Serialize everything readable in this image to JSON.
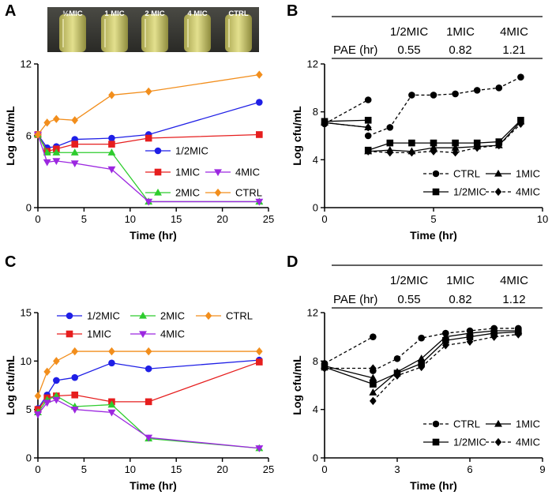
{
  "chart_data": [
    {
      "panel": "A",
      "type": "line",
      "photo_labels": [
        "½MIC",
        "1 MIC",
        "2 MIC",
        "4 MIC",
        "CTRL"
      ],
      "xlabel": "Time (hr)",
      "ylabel": "Log cfu/mL",
      "xlim": [
        0,
        25
      ],
      "ylim": [
        0,
        12
      ],
      "xticks": [
        0,
        5,
        10,
        15,
        20,
        25
      ],
      "yticks": [
        0,
        6,
        12
      ],
      "legend": [
        "1/2MIC",
        "1MIC",
        "4MIC",
        "2MIC",
        "CTRL"
      ],
      "series": [
        {
          "name": "1/2MIC",
          "color": "#1f1fe6",
          "marker": "circle",
          "x": [
            0,
            1,
            2,
            4,
            8,
            12,
            24
          ],
          "y": [
            6.1,
            5.0,
            5.1,
            5.7,
            5.8,
            6.1,
            8.8
          ]
        },
        {
          "name": "1MIC",
          "color": "#e61e1e",
          "marker": "square",
          "x": [
            0,
            1,
            2,
            4,
            8,
            12,
            24
          ],
          "y": [
            6.1,
            4.7,
            4.9,
            5.3,
            5.3,
            5.8,
            6.1
          ]
        },
        {
          "name": "2MIC",
          "color": "#2ecc2e",
          "marker": "triangle-up",
          "x": [
            0,
            1,
            2,
            4,
            8,
            12,
            24
          ],
          "y": [
            6.1,
            4.6,
            4.6,
            4.6,
            4.6,
            0.5,
            0.5
          ]
        },
        {
          "name": "4MIC",
          "color": "#9c27e0",
          "marker": "triangle-down",
          "x": [
            0,
            1,
            2,
            4,
            8,
            12,
            24
          ],
          "y": [
            6.1,
            3.8,
            3.9,
            3.7,
            3.2,
            0.5,
            0.5
          ]
        },
        {
          "name": "CTRL",
          "color": "#f28e1c",
          "marker": "diamond",
          "x": [
            0,
            1,
            2,
            4,
            8,
            12,
            24
          ],
          "y": [
            6.1,
            7.1,
            7.4,
            7.3,
            9.4,
            9.7,
            11.1
          ]
        }
      ]
    },
    {
      "panel": "B",
      "type": "line",
      "pae_table": {
        "headers": [
          "1/2MIC",
          "1MIC",
          "4MIC"
        ],
        "row_label": "PAE (hr)",
        "values": [
          "0.55",
          "0.82",
          "1.21"
        ]
      },
      "xlabel": "Time (hr)",
      "ylabel": "Log cfu/mL",
      "xlim": [
        0,
        10
      ],
      "ylim": [
        0,
        12
      ],
      "xticks": [
        0,
        5,
        10
      ],
      "yticks": [
        0,
        4,
        8,
        12
      ],
      "legend": [
        "CTRL",
        "1MIC",
        "1/2MIC",
        "4MIC"
      ],
      "series": [
        {
          "name": "CTRL",
          "color": "#000000",
          "marker": "circle",
          "dash": "4,3",
          "segments": [
            {
              "x": [
                0,
                2
              ],
              "y": [
                7.0,
                9.0
              ]
            },
            {
              "x": [
                2,
                3,
                4,
                5,
                6,
                7,
                8,
                9
              ],
              "y": [
                6.0,
                6.7,
                9.4,
                9.4,
                9.5,
                9.8,
                10.0,
                10.9
              ]
            }
          ]
        },
        {
          "name": "1MIC",
          "color": "#000000",
          "marker": "triangle-up",
          "dash": "",
          "segments": [
            {
              "x": [
                0,
                2
              ],
              "y": [
                7.1,
                6.7
              ]
            },
            {
              "x": [
                2,
                3,
                4,
                5,
                6,
                7,
                8,
                9
              ],
              "y": [
                4.7,
                4.8,
                4.7,
                5.0,
                5.0,
                5.1,
                5.2,
                7.2
              ]
            }
          ]
        },
        {
          "name": "1/2MIC",
          "color": "#000000",
          "marker": "square",
          "dash": "",
          "segments": [
            {
              "x": [
                0,
                2
              ],
              "y": [
                7.2,
                7.3
              ]
            },
            {
              "x": [
                2,
                3,
                4,
                5,
                6,
                7,
                8,
                9
              ],
              "y": [
                4.8,
                5.4,
                5.4,
                5.4,
                5.4,
                5.4,
                5.5,
                7.3
              ]
            }
          ]
        },
        {
          "name": "4MIC",
          "color": "#000000",
          "marker": "diamond",
          "dash": "4,3",
          "segments": [
            {
              "x": [
                0,
                2
              ],
              "y": [
                7.1,
                6.7
              ]
            },
            {
              "x": [
                2,
                3,
                4,
                5,
                6,
                7,
                8,
                9
              ],
              "y": [
                4.7,
                4.6,
                4.6,
                4.7,
                4.6,
                5.0,
                5.2,
                7.0
              ]
            }
          ]
        }
      ]
    },
    {
      "panel": "C",
      "type": "line",
      "xlabel": "Time (hr)",
      "ylabel": "Log cfu/mL",
      "xlim": [
        0,
        25
      ],
      "ylim": [
        0,
        15
      ],
      "xticks": [
        0,
        5,
        10,
        15,
        20,
        25
      ],
      "yticks": [
        0,
        5,
        10,
        15
      ],
      "legend": [
        "1/2MIC",
        "2MIC",
        "CTRL",
        "1MIC",
        "4MIC"
      ],
      "series": [
        {
          "name": "1/2MIC",
          "color": "#1f1fe6",
          "marker": "circle",
          "x": [
            0,
            1,
            2,
            4,
            8,
            12,
            24
          ],
          "y": [
            5.1,
            6.5,
            8.0,
            8.3,
            9.8,
            9.2,
            10.1
          ]
        },
        {
          "name": "1MIC",
          "color": "#e61e1e",
          "marker": "square",
          "x": [
            0,
            1,
            2,
            4,
            8,
            12,
            24
          ],
          "y": [
            5.0,
            6.2,
            6.4,
            6.5,
            5.8,
            5.8,
            9.9
          ]
        },
        {
          "name": "2MIC",
          "color": "#2ecc2e",
          "marker": "triangle-up",
          "x": [
            0,
            1,
            2,
            4,
            8,
            12,
            24
          ],
          "y": [
            4.7,
            6.0,
            6.4,
            5.3,
            5.5,
            2.0,
            1.0
          ]
        },
        {
          "name": "4MIC",
          "color": "#9c27e0",
          "marker": "triangle-down",
          "x": [
            0,
            1,
            2,
            4,
            8,
            12,
            24
          ],
          "y": [
            4.5,
            5.7,
            6.0,
            5.0,
            4.7,
            2.1,
            1.0
          ]
        },
        {
          "name": "CTRL",
          "color": "#f28e1c",
          "marker": "diamond",
          "x": [
            0,
            1,
            2,
            4,
            8,
            12,
            24
          ],
          "y": [
            6.4,
            8.9,
            10.0,
            11.0,
            11.0,
            11.0,
            11.0
          ]
        }
      ]
    },
    {
      "panel": "D",
      "type": "line",
      "pae_table": {
        "headers": [
          "1/2MIC",
          "1MIC",
          "4MIC"
        ],
        "row_label": "PAE (hr)",
        "values": [
          "0.55",
          "0.82",
          "1.12"
        ]
      },
      "xlabel": "Time (hr)",
      "ylabel": "Log cfu/mL",
      "xlim": [
        0,
        9
      ],
      "ylim": [
        0,
        12
      ],
      "xticks": [
        0,
        3,
        6,
        9
      ],
      "yticks": [
        0,
        4,
        8,
        12
      ],
      "legend": [
        "CTRL",
        "1MIC",
        "1/2MIC",
        "4MIC"
      ],
      "series": [
        {
          "name": "CTRL",
          "color": "#000000",
          "marker": "circle",
          "dash": "4,3",
          "segments": [
            {
              "x": [
                0,
                2
              ],
              "y": [
                7.8,
                10.0
              ]
            },
            {
              "x": [
                2,
                3,
                4,
                5,
                6,
                7,
                8
              ],
              "y": [
                7.2,
                8.2,
                9.9,
                10.3,
                10.5,
                10.7,
                10.7
              ]
            }
          ]
        },
        {
          "name": "1MIC",
          "color": "#000000",
          "marker": "triangle-up",
          "dash": "",
          "segments": [
            {
              "x": [
                0,
                2
              ],
              "y": [
                7.6,
                6.6
              ]
            },
            {
              "x": [
                2,
                3,
                4,
                5,
                6,
                7,
                8
              ],
              "y": [
                5.4,
                7.1,
                8.2,
                10.0,
                10.3,
                10.5,
                10.5
              ]
            }
          ]
        },
        {
          "name": "1/2MIC",
          "color": "#000000",
          "marker": "square",
          "dash": "",
          "segments": [
            {
              "x": [
                0,
                2
              ],
              "y": [
                7.5,
                6.1
              ]
            },
            {
              "x": [
                2,
                3,
                4,
                5,
                6,
                7,
                8
              ],
              "y": [
                6.1,
                7.0,
                7.8,
                9.7,
                10.0,
                10.3,
                10.4
              ]
            }
          ]
        },
        {
          "name": "4MIC",
          "color": "#000000",
          "marker": "diamond",
          "dash": "4,3",
          "segments": [
            {
              "x": [
                0,
                2
              ],
              "y": [
                7.4,
                7.4
              ]
            },
            {
              "x": [
                2,
                3,
                4,
                5,
                6,
                7,
                8
              ],
              "y": [
                4.7,
                6.8,
                7.5,
                9.3,
                9.6,
                10.0,
                10.2
              ]
            }
          ]
        }
      ]
    }
  ]
}
